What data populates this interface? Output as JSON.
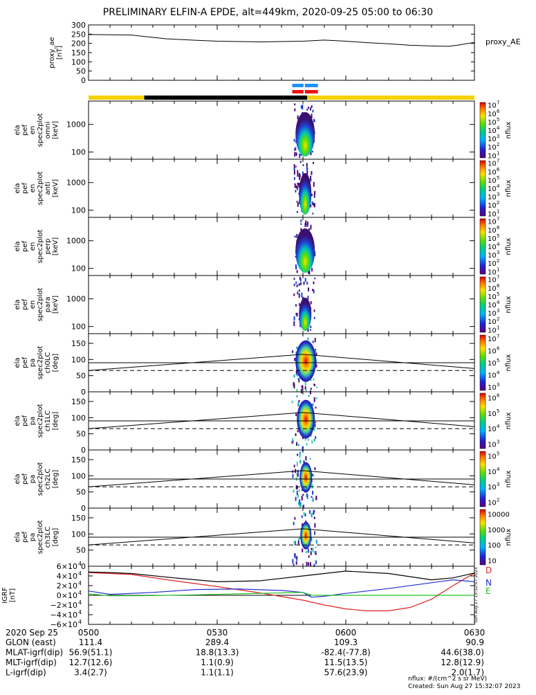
{
  "title": "PRELIMINARY ELFIN-A EPDE, alt=449km, 2020-09-25 05:00 to 06:30",
  "colors": {
    "frame": "#000000",
    "bar_yellow": "#f5d000",
    "bar_black": "#000000",
    "bar_blue": "#1e90ff",
    "bar_red": "#ee1111",
    "geo_D": "#e02020",
    "geo_N": "#2030d0",
    "geo_E": "#20c020",
    "colorbar": [
      "#5a0080",
      "#2020d0",
      "#00b0ff",
      "#00d080",
      "#60e000",
      "#ffe000",
      "#ff8000",
      "#e00000"
    ]
  },
  "chart_data": [
    {
      "id": "proxy_ae",
      "type": "line",
      "ylabel": [
        "proxy_ae",
        "[nT]"
      ],
      "yticks": [
        "0",
        "50",
        "100",
        "150",
        "200",
        "250",
        "300"
      ],
      "ylim": [
        0,
        300
      ],
      "legend": "proxy_AE",
      "x_minutes_since_0500": [
        0,
        10,
        18,
        24,
        30,
        40,
        45,
        50,
        55,
        60,
        65,
        70,
        75,
        80,
        84,
        86,
        88,
        90
      ],
      "values": [
        248,
        245,
        225,
        218,
        212,
        208,
        210,
        212,
        218,
        212,
        204,
        198,
        190,
        186,
        184,
        190,
        198,
        205
      ]
    },
    {
      "id": "orbit_bars",
      "type": "bar",
      "segments": [
        {
          "color": "yellow",
          "from_min": 0,
          "to_min": 13
        },
        {
          "color": "black",
          "from_min": 13,
          "to_min": 51
        },
        {
          "color": "yellow",
          "from_min": 51,
          "to_min": 90
        }
      ],
      "science_zone": {
        "from_min": 47.5,
        "to_min": 53.5
      }
    },
    {
      "id": "spec_omni",
      "type": "heatmap",
      "ylabel": [
        "ela",
        "pef",
        "en",
        "spec2plot",
        "omni",
        "[keV]"
      ],
      "yticks": [
        "100",
        "1000"
      ],
      "zlabel": "nflux",
      "ztick_exponents": [
        "1",
        "2",
        "3",
        "4",
        "5",
        "6",
        "7"
      ]
    },
    {
      "id": "spec_anti",
      "type": "heatmap",
      "ylabel": [
        "ela",
        "pef",
        "en",
        "spec2plot",
        "anti",
        "[keV]"
      ],
      "yticks": [
        "100",
        "1000"
      ],
      "zlabel": "nflux",
      "ztick_exponents": [
        "1",
        "2",
        "3",
        "4",
        "5",
        "6",
        "7"
      ]
    },
    {
      "id": "spec_perp",
      "type": "heatmap",
      "ylabel": [
        "ela",
        "pef",
        "en",
        "spec2plot",
        "perp",
        "[keV]"
      ],
      "yticks": [
        "100",
        "1000"
      ],
      "zlabel": "nflux",
      "ztick_exponents": [
        "1",
        "2",
        "3",
        "4",
        "5",
        "6",
        "7"
      ]
    },
    {
      "id": "spec_para",
      "type": "heatmap",
      "ylabel": [
        "ela",
        "pef",
        "en",
        "spec2plot",
        "para",
        "[keV]"
      ],
      "yticks": [
        "100",
        "1000"
      ],
      "zlabel": "nflux",
      "ztick_exponents": [
        "1",
        "2",
        "3",
        "4",
        "5",
        "6",
        "7"
      ]
    },
    {
      "id": "pa_ch0",
      "type": "heatmap",
      "ylabel": [
        "ela",
        "pef",
        "pa",
        "spec2plot",
        "ch0LC",
        "[deg]"
      ],
      "yticks": [
        "0",
        "50",
        "100",
        "150"
      ],
      "ylim": [
        0,
        180
      ],
      "zlabel": "nflux",
      "ztick_exponents": [
        "3",
        "4",
        "5",
        "6",
        "7"
      ]
    },
    {
      "id": "pa_ch1",
      "type": "heatmap",
      "ylabel": [
        "ela",
        "pef",
        "pa",
        "spec2plot",
        "ch1LC",
        "[deg]"
      ],
      "yticks": [
        "0",
        "50",
        "100",
        "150"
      ],
      "ylim": [
        0,
        180
      ],
      "zlabel": "nflux",
      "ztick_exponents": [
        "3",
        "4",
        "5",
        "6"
      ]
    },
    {
      "id": "pa_ch2",
      "type": "heatmap",
      "ylabel": [
        "ela",
        "pef",
        "pa",
        "spec2plot",
        "ch2LC",
        "[deg]"
      ],
      "yticks": [
        "0",
        "50",
        "100",
        "150"
      ],
      "ylim": [
        0,
        180
      ],
      "zlabel": "nflux",
      "ztick_exponents": [
        "2",
        "3",
        "4",
        "5"
      ]
    },
    {
      "id": "pa_ch3",
      "type": "heatmap",
      "ylabel": [
        "ela",
        "pef",
        "pa",
        "spec2plot",
        "ch3LC",
        "[deg]"
      ],
      "yticks": [
        "0",
        "50",
        "100",
        "150"
      ],
      "ylim": [
        0,
        180
      ],
      "zlabel": "nflux",
      "ztick_labels": [
        "10",
        "100",
        "1000",
        "10000"
      ]
    },
    {
      "id": "b_igrf",
      "type": "line",
      "ylabel": [
        "IGRF",
        "[nT]"
      ],
      "ytick_coefs": [
        "-6",
        "-4",
        "-2",
        "0",
        "2",
        "4",
        "6"
      ],
      "ylim": [
        -60000,
        60000
      ],
      "series": [
        {
          "name": "D",
          "color": "#e02020",
          "x": [
            0,
            10,
            20,
            30,
            40,
            50,
            55,
            60,
            65,
            70,
            75,
            80,
            85,
            90
          ],
          "values": [
            47000,
            43000,
            30000,
            18000,
            5000,
            -10000,
            -20000,
            -28000,
            -32000,
            -32000,
            -25000,
            -8000,
            20000,
            46000
          ]
        },
        {
          "name": "N",
          "color": "#2030d0",
          "x": [
            0,
            5,
            15,
            25,
            35,
            45,
            50,
            52,
            55,
            60,
            70,
            80,
            85,
            90
          ],
          "values": [
            9000,
            2000,
            6000,
            12000,
            13000,
            10000,
            6000,
            -4000,
            -2000,
            4000,
            14000,
            26000,
            32000,
            28000
          ]
        },
        {
          "name": "E",
          "color": "#20c020",
          "x": [
            0,
            5,
            15,
            25,
            35,
            45,
            50,
            52,
            55,
            60,
            70,
            80,
            90
          ],
          "values": [
            3000,
            -1000,
            -500,
            1000,
            3000,
            5000,
            6000,
            200,
            0,
            0,
            0,
            0,
            0
          ]
        },
        {
          "color": "#000000",
          "x": [
            0,
            5,
            10,
            20,
            30,
            40,
            50,
            60,
            70,
            80,
            85,
            90
          ],
          "values": [
            48000,
            47000,
            45000,
            36000,
            28000,
            30000,
            40000,
            50000,
            45000,
            32000,
            36000,
            46000
          ]
        }
      ]
    }
  ],
  "x_axis": {
    "date": "2020 Sep 25",
    "ticks": [
      "0500",
      "0530",
      "0600",
      "0630"
    ],
    "rows": [
      {
        "label": "GLON (east)",
        "values": [
          "111.4",
          "289.4",
          "109.3",
          "90.9"
        ]
      },
      {
        "label": "MLAT-igrf(dip)",
        "values": [
          "56.9(51.1)",
          "18.8(13.3)",
          "-82.4(-77.8)",
          "44.6(38.0)"
        ]
      },
      {
        "label": "MLT-igrf(dip)",
        "values": [
          "12.7(12.6)",
          "1.1(0.9)",
          "11.5(13.5)",
          "12.8(12.9)"
        ]
      },
      {
        "label": "L-igrf(dip)",
        "values": [
          "3.4(2.7)",
          "1.1(1.1)",
          "57.6(23.9)",
          "2.0(1.7)"
        ]
      }
    ]
  },
  "footer": {
    "units": "nflux: #/(cm^2 s sr MeV)",
    "created": "Created: Sun Aug 27 15:32:07 2023",
    "side_stamp": "Sun Aug 27 15:32:07 2023"
  }
}
